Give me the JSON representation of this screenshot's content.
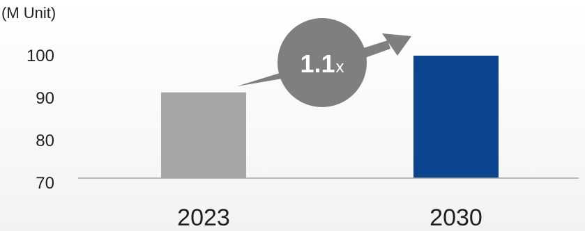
{
  "chart_data": {
    "type": "bar",
    "title": "",
    "unit_label": "(M Unit)",
    "xlabel": "",
    "ylabel": "",
    "ylim": [
      70,
      100
    ],
    "y_ticks": [
      "70",
      "80",
      "90",
      "100"
    ],
    "categories": [
      "2023",
      "2030"
    ],
    "values": [
      91,
      100
    ],
    "grid": false,
    "annotation": {
      "main": "1.1",
      "suffix": "x"
    }
  },
  "colors": {
    "bar_2023": "#a6a6a6",
    "bar_2030": "#0b4590",
    "badge": "#7f7f7f",
    "arrow": "#7f7f7f",
    "axis": "#a6a6a6"
  }
}
